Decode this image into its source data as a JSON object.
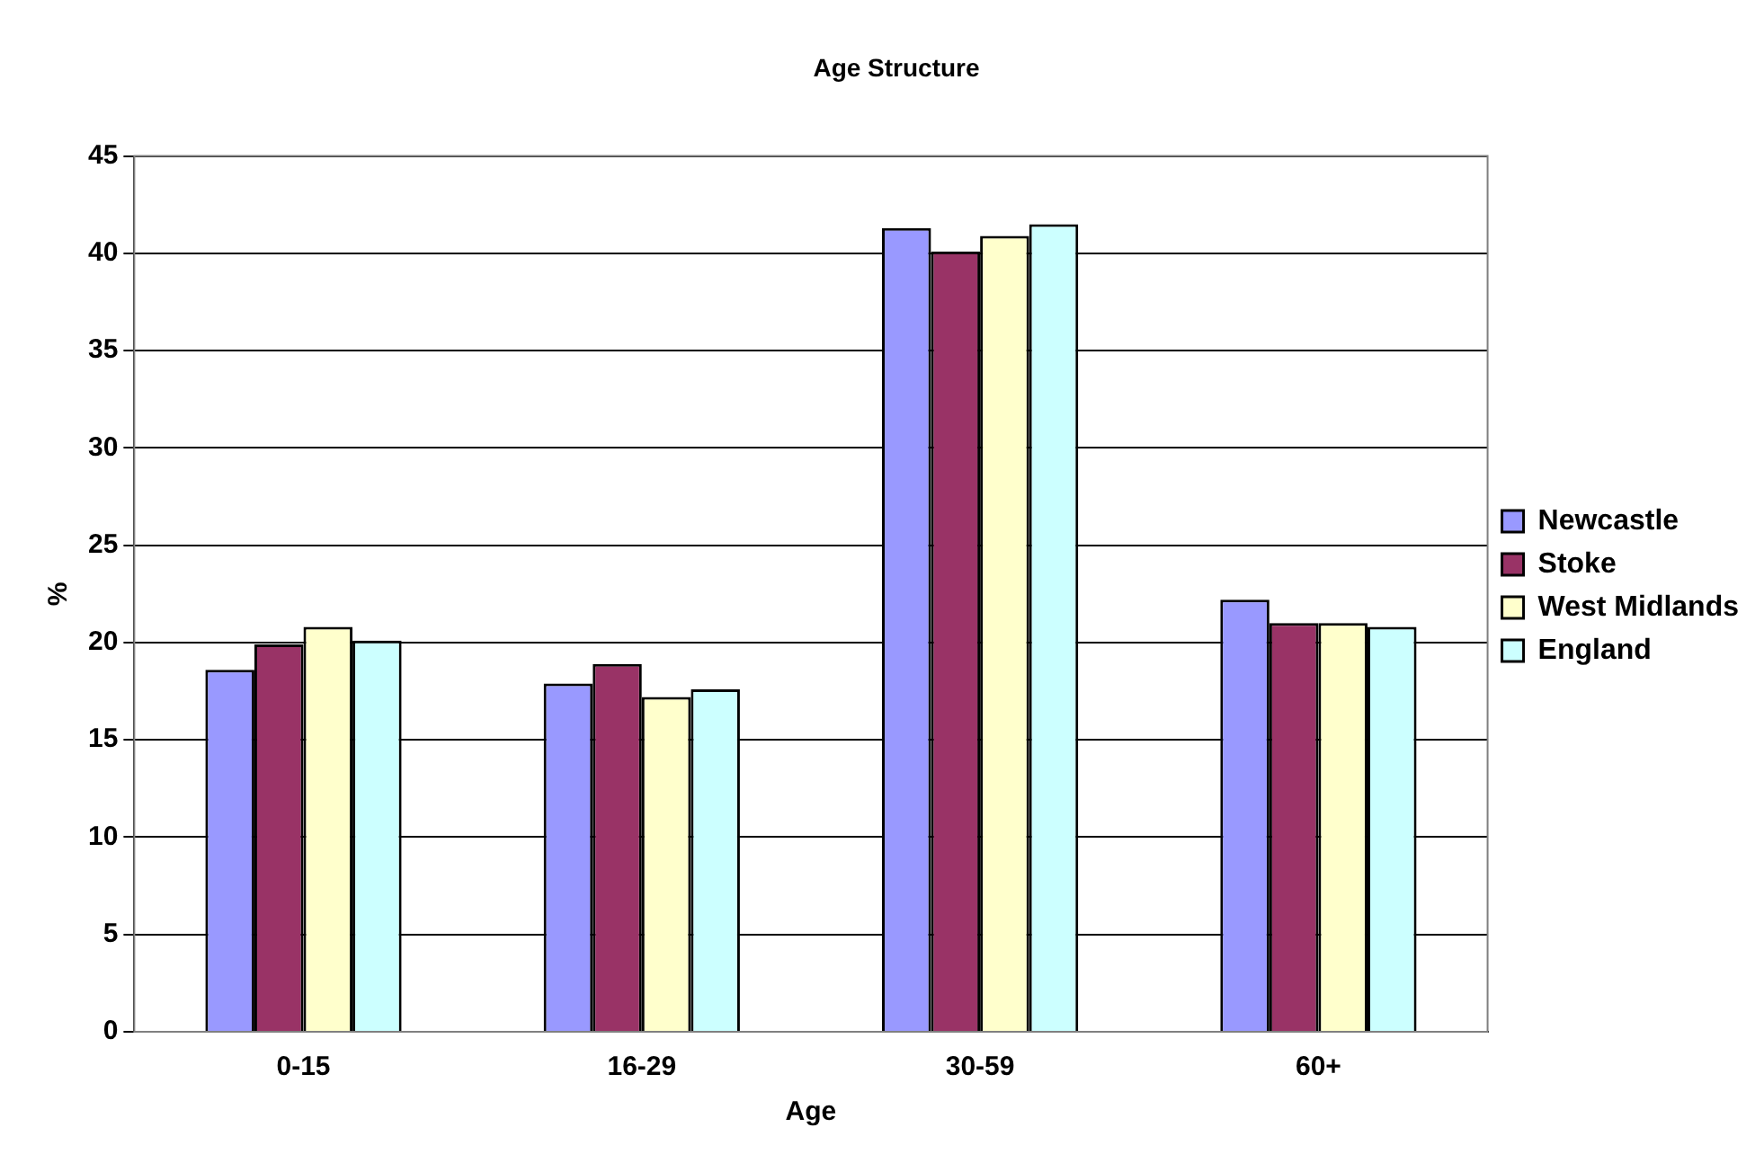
{
  "chart_data": {
    "type": "bar",
    "title": "Age Structure",
    "xlabel": "Age",
    "ylabel": "%",
    "categories": [
      "0-15",
      "16-29",
      "30-59",
      "60+"
    ],
    "series": [
      {
        "name": "Newcastle",
        "color": "#9999ff",
        "values": [
          18.6,
          17.9,
          41.3,
          22.2
        ]
      },
      {
        "name": "Stoke",
        "color": "#993366",
        "values": [
          19.9,
          18.9,
          40.1,
          21.0
        ]
      },
      {
        "name": "West Midlands",
        "color": "#ffffcc",
        "values": [
          20.8,
          17.2,
          40.9,
          21.0
        ]
      },
      {
        "name": "England",
        "color": "#ccffff",
        "values": [
          20.1,
          17.6,
          41.5,
          20.8
        ]
      }
    ],
    "ylim": [
      0,
      45
    ],
    "yticks": [
      0,
      5,
      10,
      15,
      20,
      25,
      30,
      35,
      40,
      45
    ],
    "grid": "y",
    "legend": "right"
  }
}
